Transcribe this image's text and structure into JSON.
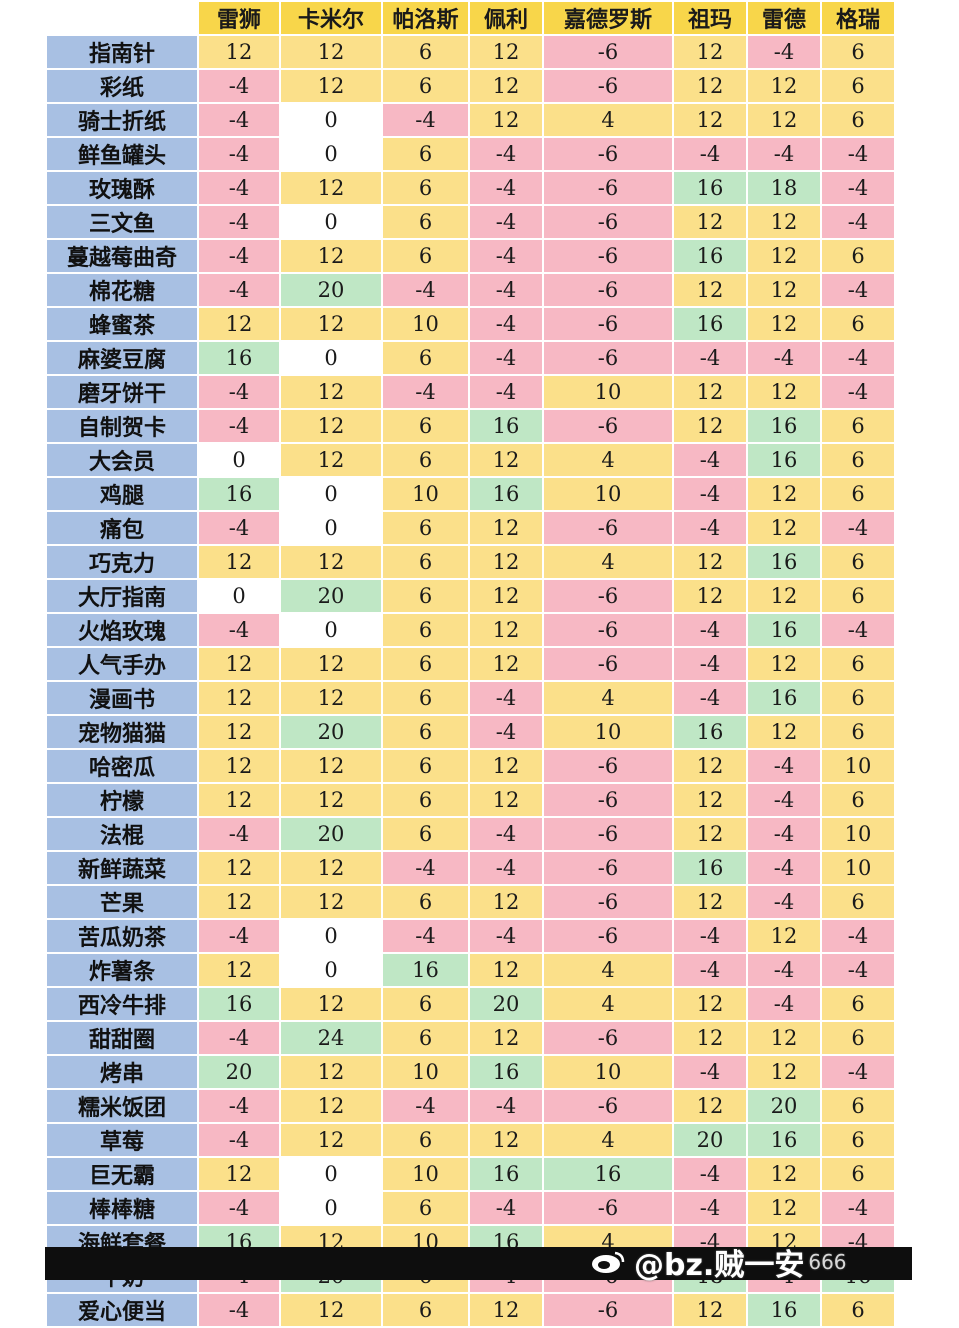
{
  "columns": [
    "雷狮",
    "卡米尔",
    "帕洛斯",
    "佩利",
    "嘉德罗斯",
    "祖玛",
    "雷德",
    "格瑞"
  ],
  "rows": [
    {
      "name": "指南针",
      "values": [
        "12",
        "12",
        "6",
        "12",
        "-6",
        "12",
        "-4",
        "6"
      ]
    },
    {
      "name": "彩纸",
      "values": [
        "-4",
        "12",
        "6",
        "12",
        "-6",
        "12",
        "12",
        "6"
      ]
    },
    {
      "name": "骑士折纸",
      "values": [
        "-4",
        "0",
        "-4",
        "12",
        "4",
        "12",
        "12",
        "6"
      ]
    },
    {
      "name": "鲜鱼罐头",
      "values": [
        "-4",
        "0",
        "6",
        "-4",
        "-6",
        "-4",
        "-4",
        "-4"
      ]
    },
    {
      "name": "玫瑰酥",
      "values": [
        "-4",
        "12",
        "6",
        "-4",
        "-6",
        "16",
        "18",
        "-4"
      ]
    },
    {
      "name": "三文鱼",
      "values": [
        "-4",
        "0",
        "6",
        "-4",
        "-6",
        "12",
        "12",
        "-4"
      ]
    },
    {
      "name": "蔓越莓曲奇",
      "values": [
        "-4",
        "12",
        "6",
        "-4",
        "-6",
        "16",
        "12",
        "6"
      ]
    },
    {
      "name": "棉花糖",
      "values": [
        "-4",
        "20",
        "-4",
        "-4",
        "-6",
        "12",
        "12",
        "-4"
      ]
    },
    {
      "name": "蜂蜜茶",
      "values": [
        "12",
        "12",
        "10",
        "-4",
        "-6",
        "16",
        "12",
        "6"
      ]
    },
    {
      "name": "麻婆豆腐",
      "values": [
        "16",
        "0",
        "6",
        "-4",
        "-6",
        "-4",
        "-4",
        "-4"
      ]
    },
    {
      "name": "磨牙饼干",
      "values": [
        "-4",
        "12",
        "-4",
        "-4",
        "10",
        "12",
        "12",
        "-4"
      ]
    },
    {
      "name": "自制贺卡",
      "values": [
        "-4",
        "12",
        "6",
        "16",
        "-6",
        "12",
        "16",
        "6"
      ]
    },
    {
      "name": "大会员",
      "values": [
        "0",
        "12",
        "6",
        "12",
        "4",
        "-4",
        "16",
        "6"
      ]
    },
    {
      "name": "鸡腿",
      "values": [
        "16",
        "0",
        "10",
        "16",
        "10",
        "-4",
        "12",
        "6"
      ]
    },
    {
      "name": "痛包",
      "values": [
        "-4",
        "0",
        "6",
        "12",
        "-6",
        "-4",
        "12",
        "-4"
      ]
    },
    {
      "name": "巧克力",
      "values": [
        "12",
        "12",
        "6",
        "12",
        "4",
        "12",
        "16",
        "6"
      ]
    },
    {
      "name": "大厅指南",
      "values": [
        "0",
        "20",
        "6",
        "12",
        "-6",
        "12",
        "12",
        "6"
      ]
    },
    {
      "name": "火焰玫瑰",
      "values": [
        "-4",
        "0",
        "6",
        "12",
        "-6",
        "-4",
        "16",
        "-4"
      ]
    },
    {
      "name": "人气手办",
      "values": [
        "12",
        "12",
        "6",
        "12",
        "-6",
        "-4",
        "12",
        "6"
      ]
    },
    {
      "name": "漫画书",
      "values": [
        "12",
        "12",
        "6",
        "-4",
        "4",
        "-4",
        "16",
        "6"
      ]
    },
    {
      "name": "宠物猫猫",
      "values": [
        "12",
        "20",
        "6",
        "-4",
        "10",
        "16",
        "12",
        "6"
      ]
    },
    {
      "name": "哈密瓜",
      "values": [
        "12",
        "12",
        "6",
        "12",
        "-6",
        "12",
        "-4",
        "10"
      ]
    },
    {
      "name": "柠檬",
      "values": [
        "12",
        "12",
        "6",
        "12",
        "-6",
        "12",
        "-4",
        "6"
      ]
    },
    {
      "name": "法棍",
      "values": [
        "-4",
        "20",
        "6",
        "-4",
        "-6",
        "12",
        "-4",
        "10"
      ]
    },
    {
      "name": "新鲜蔬菜",
      "values": [
        "12",
        "12",
        "-4",
        "-4",
        "-6",
        "16",
        "-4",
        "10"
      ]
    },
    {
      "name": "芒果",
      "values": [
        "12",
        "12",
        "6",
        "12",
        "-6",
        "12",
        "-4",
        "6"
      ]
    },
    {
      "name": "苦瓜奶茶",
      "values": [
        "-4",
        "0",
        "-4",
        "-4",
        "-6",
        "-4",
        "12",
        "-4"
      ]
    },
    {
      "name": "炸薯条",
      "values": [
        "12",
        "0",
        "16",
        "12",
        "4",
        "-4",
        "-4",
        "-4"
      ]
    },
    {
      "name": "西冷牛排",
      "values": [
        "16",
        "12",
        "6",
        "20",
        "4",
        "12",
        "-4",
        "6"
      ]
    },
    {
      "name": "甜甜圈",
      "values": [
        "-4",
        "24",
        "6",
        "12",
        "-6",
        "12",
        "12",
        "6"
      ]
    },
    {
      "name": "烤串",
      "values": [
        "20",
        "12",
        "10",
        "16",
        "10",
        "-4",
        "12",
        "-4"
      ]
    },
    {
      "name": "糯米饭团",
      "values": [
        "-4",
        "12",
        "-4",
        "-4",
        "-6",
        "12",
        "20",
        "6"
      ]
    },
    {
      "name": "草莓",
      "values": [
        "-4",
        "12",
        "6",
        "12",
        "4",
        "20",
        "16",
        "6"
      ]
    },
    {
      "name": "巨无霸",
      "values": [
        "12",
        "0",
        "10",
        "16",
        "16",
        "-4",
        "12",
        "6"
      ]
    },
    {
      "name": "棒棒糖",
      "values": [
        "-4",
        "0",
        "6",
        "-4",
        "-6",
        "-4",
        "12",
        "-4"
      ]
    },
    {
      "name": "海鲜套餐",
      "values": [
        "16",
        "12",
        "10",
        "16",
        "4",
        "-4",
        "12",
        "-4"
      ]
    },
    {
      "name": "牛奶",
      "values": [
        "-4",
        "20",
        "6",
        "-4",
        "-6",
        "18",
        "-4",
        "16"
      ]
    },
    {
      "name": "爱心便当",
      "values": [
        "-4",
        "12",
        "6",
        "12",
        "-6",
        "12",
        "16",
        "6"
      ]
    }
  ],
  "colors": {
    "header": "#f8d64a",
    "name_col": "#a8c0e3",
    "medium": "#fbe08a",
    "negative": "#f7b8c4",
    "high": "#bfe7c5",
    "zero": "#ffffff"
  },
  "watermark": {
    "handle": "@bz.贼一安",
    "suffix": "666",
    "logo_icon": "weibo-icon"
  }
}
